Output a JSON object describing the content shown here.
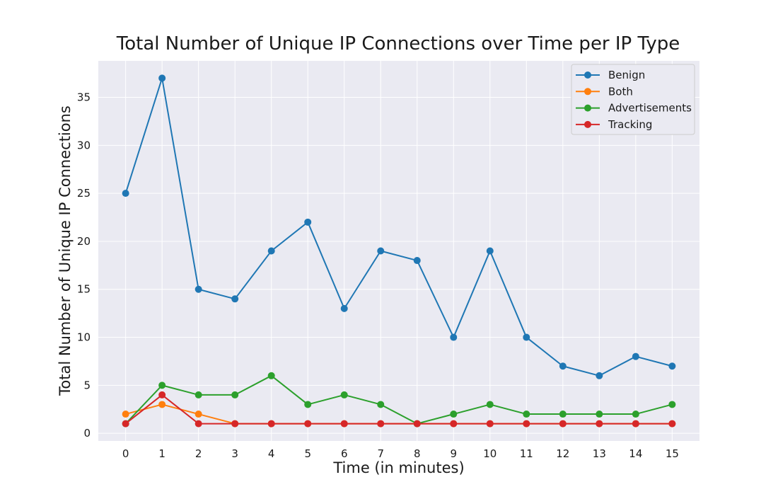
{
  "chart_data": {
    "type": "line",
    "title": "Total Number of Unique IP Connections over Time per IP Type",
    "xlabel": "Time (in minutes)",
    "ylabel": "Total Number of Unique IP Connections",
    "x": [
      0,
      1,
      2,
      3,
      4,
      5,
      6,
      7,
      8,
      9,
      10,
      11,
      12,
      13,
      14,
      15
    ],
    "xticks": [
      0,
      1,
      2,
      3,
      4,
      5,
      6,
      7,
      8,
      9,
      10,
      11,
      12,
      13,
      14,
      15
    ],
    "yticks": [
      0,
      5,
      10,
      15,
      20,
      25,
      30,
      35
    ],
    "xlim": [
      -0.75,
      15.75
    ],
    "ylim": [
      -0.8,
      38.8
    ],
    "grid": true,
    "legend_position": "top-right",
    "background_color": "#eaeaf2",
    "series": [
      {
        "name": "Benign",
        "color": "#1f77b4",
        "values": [
          25,
          37,
          15,
          14,
          19,
          22,
          13,
          19,
          18,
          10,
          19,
          10,
          7,
          6,
          8,
          7
        ]
      },
      {
        "name": "Both",
        "color": "#ff7f0e",
        "values": [
          2,
          3,
          2,
          1,
          1,
          1,
          1,
          1,
          1,
          1,
          1,
          1,
          1,
          1,
          1,
          1
        ]
      },
      {
        "name": "Advertisements",
        "color": "#2ca02c",
        "values": [
          1,
          5,
          4,
          4,
          6,
          3,
          4,
          3,
          1,
          2,
          3,
          2,
          2,
          2,
          2,
          3
        ]
      },
      {
        "name": "Tracking",
        "color": "#d62728",
        "values": [
          1,
          4,
          1,
          1,
          1,
          1,
          1,
          1,
          1,
          1,
          1,
          1,
          1,
          1,
          1,
          1
        ]
      }
    ]
  }
}
